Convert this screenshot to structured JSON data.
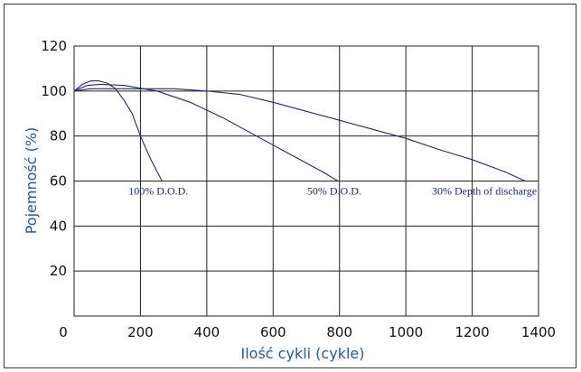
{
  "colors": {
    "axis_title": "#1e5aa6",
    "curve": "#1b2a78",
    "grid": "#222222",
    "frame": "#3a3a3a"
  },
  "chart_data": {
    "type": "line",
    "xlabel": "Ilość cykli (cykle)",
    "ylabel": "Pojemność (%)",
    "xlim": [
      0,
      1400
    ],
    "ylim": [
      0,
      120
    ],
    "x_ticks": [
      "0",
      "200",
      "400",
      "600",
      "800",
      "1000",
      "1200",
      "1400"
    ],
    "y_ticks": [
      "20",
      "40",
      "60",
      "80",
      "100",
      "120"
    ],
    "grid": true,
    "series": [
      {
        "name": "100% D.O.D.",
        "x": [
          0,
          25,
          50,
          75,
          100,
          125,
          150,
          175,
          200,
          230,
          265
        ],
        "y": [
          100,
          103,
          104.5,
          104.5,
          103.5,
          101,
          96,
          90,
          80,
          70,
          60
        ]
      },
      {
        "name": "50% D.O.D.",
        "x": [
          0,
          40,
          80,
          150,
          250,
          350,
          450,
          550,
          650,
          750,
          795
        ],
        "y": [
          100,
          102.5,
          103,
          102.5,
          100,
          95,
          88,
          80,
          72,
          64,
          60
        ]
      },
      {
        "name": "30% Depth of  discharge",
        "x": [
          0,
          50,
          100,
          200,
          300,
          400,
          500,
          600,
          700,
          800,
          900,
          1000,
          1100,
          1200,
          1300,
          1360
        ],
        "y": [
          100,
          101,
          101,
          101,
          101,
          100,
          98.5,
          95,
          91,
          87,
          83,
          79,
          74,
          69.5,
          64,
          60
        ]
      }
    ]
  }
}
